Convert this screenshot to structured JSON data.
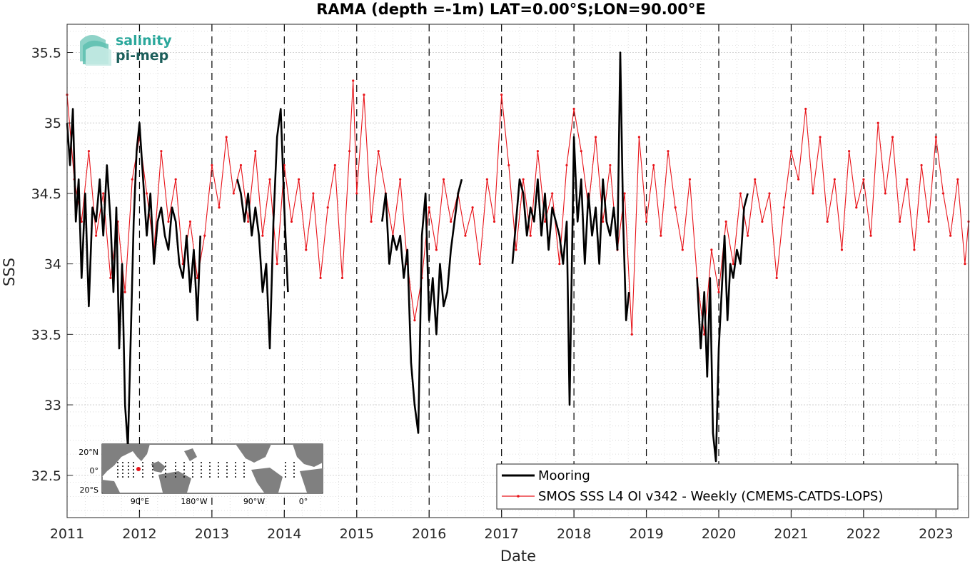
{
  "chart_data": {
    "type": "line",
    "title": "RAMA (depth =-1m) LAT=0.00°S;LON=90.00°E",
    "xlabel": "Date",
    "ylabel": "SSS",
    "xlim": [
      2011.0,
      2023.45
    ],
    "ylim": [
      32.2,
      35.7
    ],
    "x_ticks": [
      "2011",
      "2012",
      "2013",
      "2014",
      "2015",
      "2016",
      "2017",
      "2018",
      "2019",
      "2020",
      "2021",
      "2022",
      "2023"
    ],
    "y_ticks": [
      "32.5",
      "33",
      "33.5",
      "34",
      "34.5",
      "35",
      "35.5"
    ],
    "grid": true,
    "year_markers": "dashed vertical lines at each year",
    "legend_position": "bottom-right",
    "series": [
      {
        "name": "Mooring",
        "color": "#000000",
        "style": "solid thick",
        "segments": [
          {
            "x": [
              2011.0,
              2011.04,
              2011.08,
              2011.12,
              2011.16,
              2011.2,
              2011.25,
              2011.3,
              2011.35,
              2011.4,
              2011.45,
              2011.5,
              2011.55,
              2011.6,
              2011.64,
              2011.68,
              2011.72,
              2011.76,
              2011.8,
              2011.84,
              2011.88,
              2011.92,
              2011.96,
              2012.0,
              2012.05,
              2012.1,
              2012.15,
              2012.2,
              2012.25,
              2012.3,
              2012.35,
              2012.4,
              2012.45,
              2012.5,
              2012.55,
              2012.6,
              2012.65,
              2012.7,
              2012.75,
              2012.8,
              2012.84
            ],
            "y": [
              35.0,
              34.7,
              35.1,
              34.3,
              34.6,
              33.9,
              34.5,
              33.7,
              34.4,
              34.3,
              34.6,
              34.2,
              34.7,
              34.3,
              33.8,
              34.4,
              33.4,
              34.0,
              33.0,
              32.7,
              33.5,
              34.3,
              34.8,
              35.0,
              34.6,
              34.2,
              34.5,
              34.0,
              34.3,
              34.4,
              34.2,
              34.1,
              34.4,
              34.3,
              34.0,
              33.9,
              34.2,
              33.8,
              34.1,
              33.6,
              34.2
            ]
          },
          {
            "x": [
              2013.35,
              2013.4,
              2013.45,
              2013.5,
              2013.55,
              2013.6,
              2013.65,
              2013.7,
              2013.75,
              2013.8,
              2013.85,
              2013.9,
              2013.95,
              2014.0,
              2014.05
            ],
            "y": [
              34.6,
              34.5,
              34.3,
              34.5,
              34.2,
              34.4,
              34.2,
              33.8,
              34.0,
              33.4,
              34.3,
              34.9,
              35.1,
              34.4,
              33.8
            ]
          },
          {
            "x": [
              2015.35,
              2015.4,
              2015.45,
              2015.5,
              2015.55,
              2015.6,
              2015.65,
              2015.7,
              2015.75,
              2015.8,
              2015.85,
              2015.9,
              2015.95,
              2016.0,
              2016.05,
              2016.1,
              2016.15,
              2016.2,
              2016.25,
              2016.3,
              2016.35,
              2016.4,
              2016.45
            ],
            "y": [
              34.3,
              34.5,
              34.0,
              34.2,
              34.1,
              34.2,
              33.9,
              34.1,
              33.3,
              33.0,
              32.8,
              34.2,
              34.5,
              33.6,
              33.9,
              33.5,
              34.0,
              33.7,
              33.8,
              34.1,
              34.3,
              34.5,
              34.6
            ]
          },
          {
            "x": [
              2017.15,
              2017.2,
              2017.25,
              2017.3,
              2017.35,
              2017.4,
              2017.45,
              2017.5,
              2017.55,
              2017.6,
              2017.65,
              2017.7,
              2017.75,
              2017.8,
              2017.85,
              2017.9,
              2017.94,
              2018.0,
              2018.05,
              2018.1,
              2018.15,
              2018.2,
              2018.25,
              2018.3,
              2018.35,
              2018.4,
              2018.45,
              2018.5,
              2018.55,
              2018.6,
              2018.64,
              2018.68,
              2018.72,
              2018.76
            ],
            "y": [
              34.0,
              34.3,
              34.6,
              34.5,
              34.2,
              34.4,
              34.3,
              34.6,
              34.2,
              34.5,
              34.1,
              34.4,
              34.3,
              34.2,
              34.0,
              34.3,
              33.0,
              34.9,
              34.3,
              34.6,
              34.0,
              34.5,
              34.2,
              34.4,
              34.0,
              34.6,
              34.3,
              34.2,
              34.4,
              34.1,
              35.5,
              34.3,
              33.6,
              33.8
            ]
          },
          {
            "x": [
              2019.7,
              2019.75,
              2019.8,
              2019.84,
              2019.88,
              2019.92,
              2019.96,
              2020.0,
              2020.04,
              2020.08,
              2020.12,
              2020.16,
              2020.2,
              2020.25,
              2020.3,
              2020.35,
              2020.4
            ],
            "y": [
              33.9,
              33.4,
              33.8,
              33.2,
              33.9,
              32.8,
              32.6,
              33.4,
              33.8,
              34.2,
              33.6,
              34.0,
              33.9,
              34.1,
              34.0,
              34.4,
              34.5
            ]
          }
        ]
      },
      {
        "name": "SMOS SSS L4 OI v342 - Weekly (CMEMS-CATDS-LOPS)",
        "color": "#e8141a",
        "style": "thin line with dot markers, weekly",
        "x": [
          2011.0,
          2011.1,
          2011.2,
          2011.3,
          2011.4,
          2011.5,
          2011.6,
          2011.7,
          2011.8,
          2011.9,
          2012.0,
          2012.1,
          2012.2,
          2012.3,
          2012.4,
          2012.5,
          2012.6,
          2012.7,
          2012.8,
          2012.9,
          2013.0,
          2013.1,
          2013.2,
          2013.3,
          2013.4,
          2013.5,
          2013.6,
          2013.7,
          2013.8,
          2013.9,
          2014.0,
          2014.1,
          2014.2,
          2014.3,
          2014.4,
          2014.5,
          2014.6,
          2014.7,
          2014.8,
          2014.9,
          2014.95,
          2015.0,
          2015.1,
          2015.2,
          2015.3,
          2015.4,
          2015.5,
          2015.6,
          2015.7,
          2015.8,
          2015.9,
          2016.0,
          2016.1,
          2016.2,
          2016.3,
          2016.4,
          2016.5,
          2016.6,
          2016.7,
          2016.8,
          2016.9,
          2017.0,
          2017.1,
          2017.2,
          2017.3,
          2017.4,
          2017.5,
          2017.6,
          2017.7,
          2017.8,
          2017.9,
          2018.0,
          2018.1,
          2018.2,
          2018.3,
          2018.4,
          2018.5,
          2018.6,
          2018.7,
          2018.8,
          2018.9,
          2019.0,
          2019.1,
          2019.2,
          2019.3,
          2019.4,
          2019.5,
          2019.6,
          2019.7,
          2019.8,
          2019.9,
          2020.0,
          2020.1,
          2020.2,
          2020.3,
          2020.4,
          2020.5,
          2020.6,
          2020.7,
          2020.8,
          2020.9,
          2021.0,
          2021.1,
          2021.2,
          2021.3,
          2021.4,
          2021.5,
          2021.6,
          2021.7,
          2021.8,
          2021.9,
          2022.0,
          2022.1,
          2022.2,
          2022.3,
          2022.4,
          2022.5,
          2022.6,
          2022.7,
          2022.8,
          2022.9,
          2023.0,
          2023.1,
          2023.2,
          2023.3,
          2023.4,
          2023.45
        ],
        "y": [
          35.2,
          34.6,
          34.3,
          34.8,
          34.2,
          34.5,
          33.9,
          34.3,
          33.8,
          34.6,
          34.9,
          34.5,
          34.1,
          34.8,
          34.3,
          34.6,
          34.0,
          34.3,
          33.9,
          34.2,
          34.7,
          34.4,
          34.9,
          34.5,
          34.7,
          34.3,
          34.8,
          34.2,
          34.6,
          34.0,
          34.7,
          34.3,
          34.6,
          34.1,
          34.5,
          33.9,
          34.4,
          34.7,
          33.9,
          34.8,
          35.3,
          34.5,
          35.2,
          34.3,
          34.8,
          34.5,
          34.2,
          34.6,
          34.0,
          33.6,
          33.9,
          34.4,
          34.1,
          34.6,
          34.3,
          34.5,
          34.2,
          34.4,
          34.0,
          34.6,
          34.3,
          35.2,
          34.7,
          34.1,
          34.6,
          34.2,
          34.8,
          34.3,
          34.5,
          34.0,
          34.7,
          35.1,
          34.8,
          34.4,
          34.9,
          34.3,
          34.7,
          34.1,
          34.5,
          33.5,
          34.9,
          34.3,
          34.7,
          34.2,
          34.8,
          34.4,
          34.1,
          34.6,
          33.9,
          33.5,
          34.1,
          33.8,
          34.3,
          34.0,
          34.5,
          34.2,
          34.6,
          34.3,
          34.5,
          33.9,
          34.4,
          34.8,
          34.6,
          35.1,
          34.5,
          34.9,
          34.3,
          34.6,
          34.1,
          34.8,
          34.4,
          34.6,
          34.2,
          35.0,
          34.5,
          34.9,
          34.3,
          34.6,
          34.1,
          34.7,
          34.3,
          34.9,
          34.5,
          34.2,
          34.6,
          34.0,
          34.3
        ]
      }
    ]
  },
  "logo": {
    "line1": "salinity",
    "line2": "pi-mep",
    "colors": [
      "#2aa79b",
      "#1b5e5a"
    ]
  },
  "inset_map": {
    "y_labels": [
      "20°N",
      "0°",
      "20°S"
    ],
    "x_labels": [
      "90°E",
      "180°W",
      "90°W",
      "0°"
    ],
    "land_color": "#808080",
    "ocean_color": "#ffffff",
    "station_marker_color": "#e8141a"
  }
}
